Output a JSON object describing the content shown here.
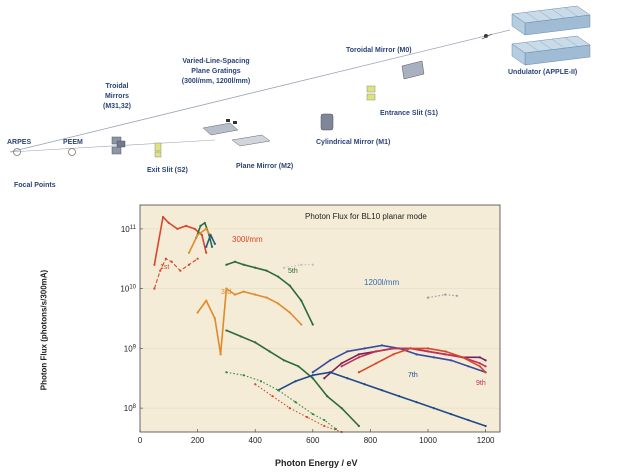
{
  "beamline": {
    "components": {
      "arpes": "ARPES",
      "peem": "PEEM",
      "focal_points": "Focal Points",
      "toroidal_m3m2_line1": "Troidal",
      "toroidal_m3m2_line2": "Mirrors",
      "toroidal_m3m2_line3": "(M31,32)",
      "exit_slit": "Exit Slit (S2)",
      "gratings_line1": "Varied-Line-Spacing",
      "gratings_line2": "Plane Gratings",
      "gratings_line3": "(300l/mm, 1200l/mm)",
      "plane_mirror": "Plane Mirror (M2)",
      "cylindrical_mirror": "Cylindrical Mirror (M1)",
      "entrance_slit": "Entrance Slit (S1)",
      "toroidal_mirror_m0": "Toroidal Mirror (M0)",
      "undulator": "Undulator (APPLE-II)"
    },
    "colors": {
      "beam": "#9aa3b8",
      "label": "#2b4477",
      "optic": "#c8cdd8",
      "slit": "#d8e07a"
    }
  },
  "chart_data": {
    "type": "line",
    "title": "Photon Flux for BL10 planar mode",
    "xlabel": "Photon Energy / eV",
    "ylabel": "Photon Flux (photons/s/300mA)",
    "xlim": [
      0,
      1250
    ],
    "ylim_log10": [
      7.6,
      11.4
    ],
    "y_scale": "log",
    "xticks": [
      0,
      200,
      400,
      600,
      800,
      1000,
      1200
    ],
    "yticks": [
      "10^8",
      "10^9",
      "10^10",
      "10^11"
    ],
    "ytick_exponents": [
      8,
      9,
      10,
      11
    ],
    "annotations": {
      "grating_300": "300l/mm",
      "grating_1200": "1200l/mm",
      "h1": "1st",
      "h3": "3rd",
      "h5": "5th",
      "h7": "7th",
      "h9": "9th"
    },
    "series": [
      {
        "color": "#d9472b",
        "style": "solid",
        "x": [
          50,
          80,
          100,
          130,
          160,
          190,
          215,
          230
        ],
        "y": [
          10.4,
          11.2,
          11.1,
          11.0,
          11.05,
          11.0,
          10.9,
          10.6
        ]
      },
      {
        "color": "#2e6b3a",
        "style": "solid",
        "x": [
          195,
          210,
          225,
          240,
          250
        ],
        "y": [
          10.85,
          11.05,
          11.1,
          10.9,
          10.7
        ]
      },
      {
        "color": "#e08a2a",
        "style": "solid",
        "x": [
          170,
          200,
          230,
          250
        ],
        "y": [
          10.6,
          10.9,
          11.0,
          10.85
        ]
      },
      {
        "color": "#1e5a8a",
        "style": "solid",
        "x": [
          230,
          245,
          260
        ],
        "y": [
          10.7,
          10.9,
          10.75
        ]
      },
      {
        "color": "#d9472b",
        "style": "dashed",
        "x": [
          50,
          70,
          90,
          110,
          140,
          170,
          200
        ],
        "y": [
          10.0,
          10.3,
          10.5,
          10.45,
          10.3,
          10.4,
          10.5
        ]
      },
      {
        "color": "#e08a2a",
        "style": "solid",
        "x": [
          200,
          230,
          260,
          280,
          300,
          330,
          360,
          400,
          440,
          480,
          520,
          560
        ],
        "y": [
          9.6,
          9.8,
          9.5,
          8.9,
          10.0,
          9.9,
          9.95,
          9.9,
          9.85,
          9.75,
          9.6,
          9.4
        ]
      },
      {
        "color": "#2e6b3a",
        "style": "solid",
        "x": [
          300,
          330,
          360,
          400,
          440,
          480,
          520,
          560,
          600
        ],
        "y": [
          10.4,
          10.45,
          10.4,
          10.35,
          10.3,
          10.2,
          10.05,
          9.8,
          9.4
        ]
      },
      {
        "color": "#c0c0c0",
        "style": "dotted",
        "x": [
          500,
          560,
          600
        ],
        "y": [
          10.35,
          10.4,
          10.4
        ]
      },
      {
        "color": "#2e6b3a",
        "style": "solid",
        "x": [
          300,
          350,
          400,
          450,
          500,
          550,
          600,
          650,
          700,
          760
        ],
        "y": [
          9.3,
          9.2,
          9.1,
          8.95,
          8.8,
          8.7,
          8.5,
          8.2,
          8.0,
          7.7
        ]
      },
      {
        "color": "#7a1f5c",
        "style": "solid",
        "x": [
          640,
          700,
          760,
          820,
          880,
          940,
          1000,
          1060,
          1120,
          1180,
          1200
        ],
        "y": [
          8.5,
          8.75,
          8.9,
          8.95,
          9.0,
          9.0,
          8.95,
          8.9,
          8.85,
          8.85,
          8.8
        ]
      },
      {
        "color": "#3a4aa0",
        "style": "solid",
        "x": [
          600,
          660,
          720,
          780,
          840,
          900,
          960,
          1020,
          1080,
          1140,
          1200
        ],
        "y": [
          8.6,
          8.8,
          8.95,
          9.0,
          9.05,
          9.0,
          8.9,
          8.85,
          8.8,
          8.7,
          8.6
        ]
      },
      {
        "color": "#c0305a",
        "style": "solid",
        "x": [
          700,
          760,
          820,
          880,
          940,
          1000,
          1060,
          1120,
          1180,
          1200
        ],
        "y": [
          8.7,
          8.85,
          8.95,
          9.0,
          9.0,
          8.95,
          8.9,
          8.85,
          8.75,
          8.7
        ]
      },
      {
        "color": "#d9472b",
        "style": "solid",
        "x": [
          760,
          820,
          880,
          940,
          1000,
          1060,
          1120,
          1180,
          1200
        ],
        "y": [
          8.6,
          8.75,
          8.9,
          9.0,
          9.0,
          8.95,
          8.85,
          8.7,
          8.6
        ]
      },
      {
        "color": "#1e4a8a",
        "style": "solid",
        "x": [
          480,
          540,
          600,
          660,
          720,
          780,
          840,
          900,
          960,
          1020,
          1080,
          1140,
          1200
        ],
        "y": [
          8.3,
          8.45,
          8.55,
          8.6,
          8.5,
          8.4,
          8.3,
          8.2,
          8.1,
          8.0,
          7.9,
          7.8,
          7.7
        ]
      },
      {
        "color": "#2e8a3a",
        "style": "dotted",
        "x": [
          300,
          360,
          420,
          480,
          540,
          600,
          640,
          680
        ],
        "y": [
          8.6,
          8.55,
          8.45,
          8.3,
          8.1,
          7.9,
          7.8,
          7.65
        ]
      },
      {
        "color": "#d9472b",
        "style": "dotted",
        "x": [
          400,
          460,
          520,
          580,
          640,
          700
        ],
        "y": [
          8.4,
          8.2,
          8.0,
          7.85,
          7.7,
          7.6
        ]
      },
      {
        "color": "#999999",
        "style": "dotted",
        "x": [
          1000,
          1060,
          1100
        ],
        "y": [
          9.85,
          9.9,
          9.88
        ]
      }
    ]
  }
}
